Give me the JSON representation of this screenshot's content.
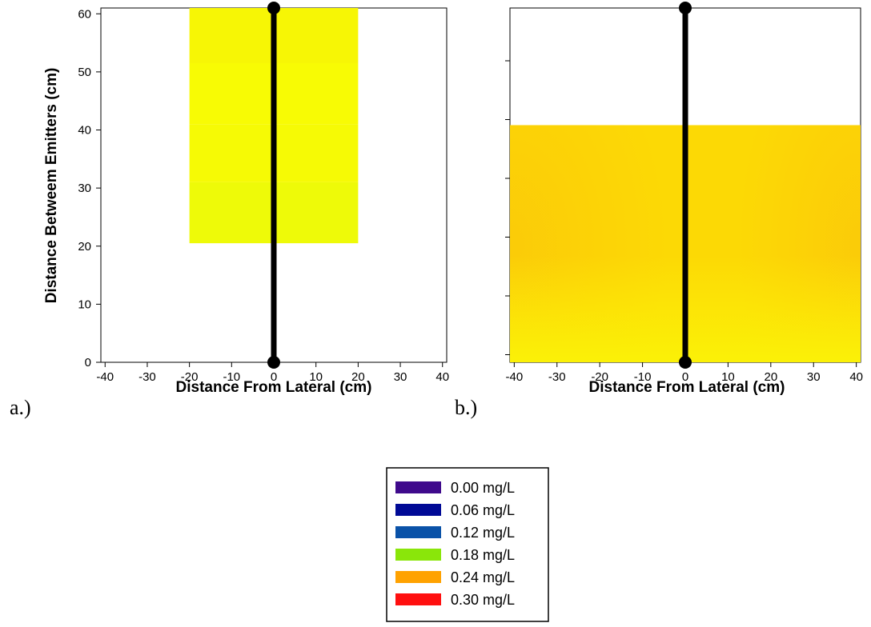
{
  "chart_data": [
    {
      "type": "heatmap",
      "panel_label": "a.)",
      "xlabel": "Distance From Lateral (cm)",
      "ylabel": "Distance Betweem Emitters (cm)",
      "xlim": [
        -41,
        41
      ],
      "ylim": [
        0,
        61
      ],
      "xticks": [
        "-40",
        "-30",
        "-20",
        "-10",
        "0",
        "10",
        "20",
        "30",
        "40"
      ],
      "yticks": [
        "0",
        "10",
        "20",
        "30",
        "40",
        "50",
        "60"
      ],
      "regions": [
        {
          "x": [
            -20,
            20
          ],
          "y": [
            20.5,
            31
          ],
          "color": "#eefa08"
        },
        {
          "x": [
            -20,
            20
          ],
          "y": [
            31,
            41
          ],
          "color": "#f6fa05"
        },
        {
          "x": [
            -20,
            20
          ],
          "y": [
            41,
            51.5
          ],
          "color": "#f8fb04"
        },
        {
          "x": [
            -20,
            20
          ],
          "y": [
            51.5,
            61
          ],
          "color": "#f7f605"
        }
      ],
      "lateral_line": {
        "x": 0,
        "y": [
          0,
          61
        ]
      }
    },
    {
      "type": "heatmap",
      "panel_label": "b.)",
      "xlabel": "Distance From Lateral (cm)",
      "ylabel": "",
      "xlim": [
        -41,
        41
      ],
      "ylim": [
        0,
        62
      ],
      "xticks": [
        "-40",
        "-30",
        "-20",
        "-10",
        "0",
        "10",
        "20",
        "30",
        "40"
      ],
      "yticks": [
        "",
        "",
        "",
        "",
        "",
        ""
      ],
      "field": {
        "x": [
          -41,
          41
        ],
        "y": [
          0,
          41.5
        ],
        "base_color": "#fcd905"
      },
      "lateral_line": {
        "x": 0,
        "y": [
          0,
          62
        ]
      }
    }
  ],
  "legend": {
    "items": [
      {
        "label": "0.00 mg/L",
        "color": "#3f0a8c"
      },
      {
        "label": "0.06 mg/L",
        "color": "#000a96"
      },
      {
        "label": "0.12 mg/L",
        "color": "#0a52a8"
      },
      {
        "label": "0.18 mg/L",
        "color": "#8ae60a"
      },
      {
        "label": "0.24 mg/L",
        "color": "#ffa200"
      },
      {
        "label": "0.30 mg/L",
        "color": "#ff0f0f"
      }
    ]
  }
}
